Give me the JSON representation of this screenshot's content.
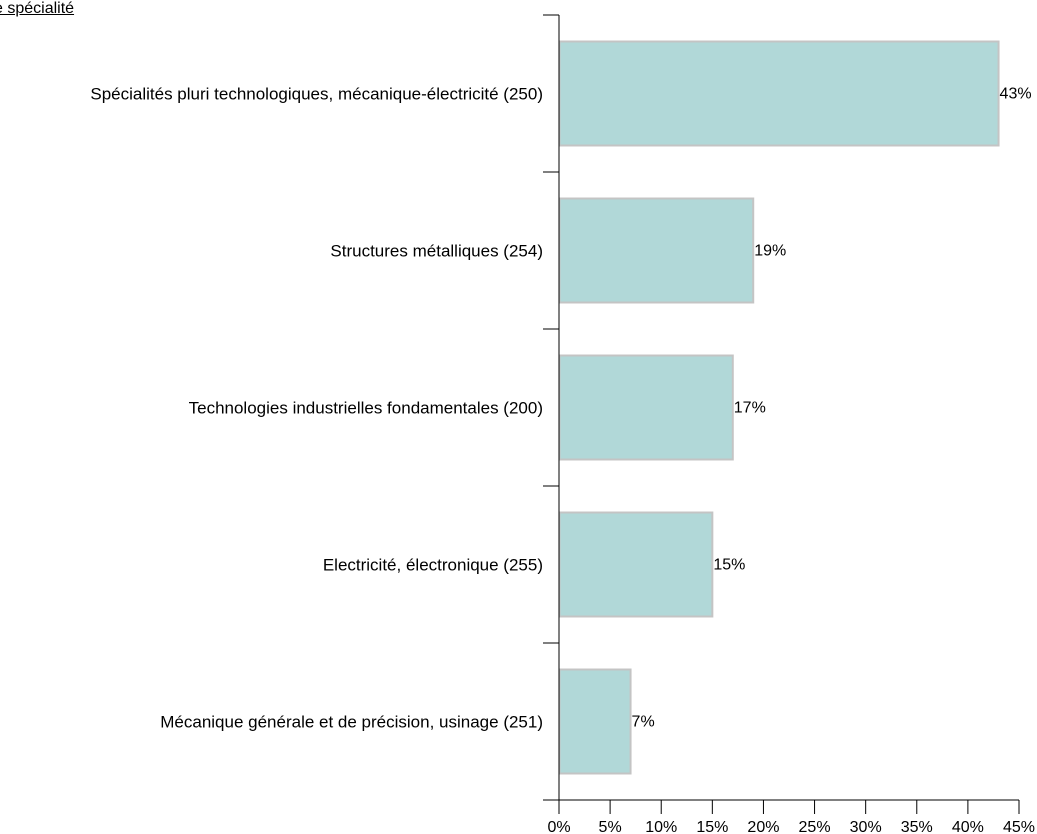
{
  "chart_data": {
    "type": "bar",
    "orientation": "horizontal",
    "title": "e spécialité",
    "categories": [
      "Spécialités pluri technologiques, mécanique-électricité (250)",
      "Structures métalliques (254)",
      "Technologies industrielles fondamentales (200)",
      "Electricité, électronique (255)",
      "Mécanique générale et de précision, usinage (251)"
    ],
    "values": [
      43,
      19,
      17,
      15,
      7
    ],
    "value_labels": [
      "43%",
      "19%",
      "17%",
      "15%",
      "7%"
    ],
    "xlim": [
      0,
      45
    ],
    "x_ticks": [
      0,
      5,
      10,
      15,
      20,
      25,
      30,
      35,
      40,
      45
    ],
    "x_tick_labels": [
      "0%",
      "5%",
      "10%",
      "15%",
      "20%",
      "25%",
      "30%",
      "35%",
      "40%",
      "45%"
    ],
    "xlabel": "",
    "ylabel": "",
    "grid": false,
    "legend": "none",
    "colors": {
      "bar_fill": "#b1d8d8",
      "bar_stroke": "#c4c4c4",
      "axis": "#000000"
    }
  }
}
